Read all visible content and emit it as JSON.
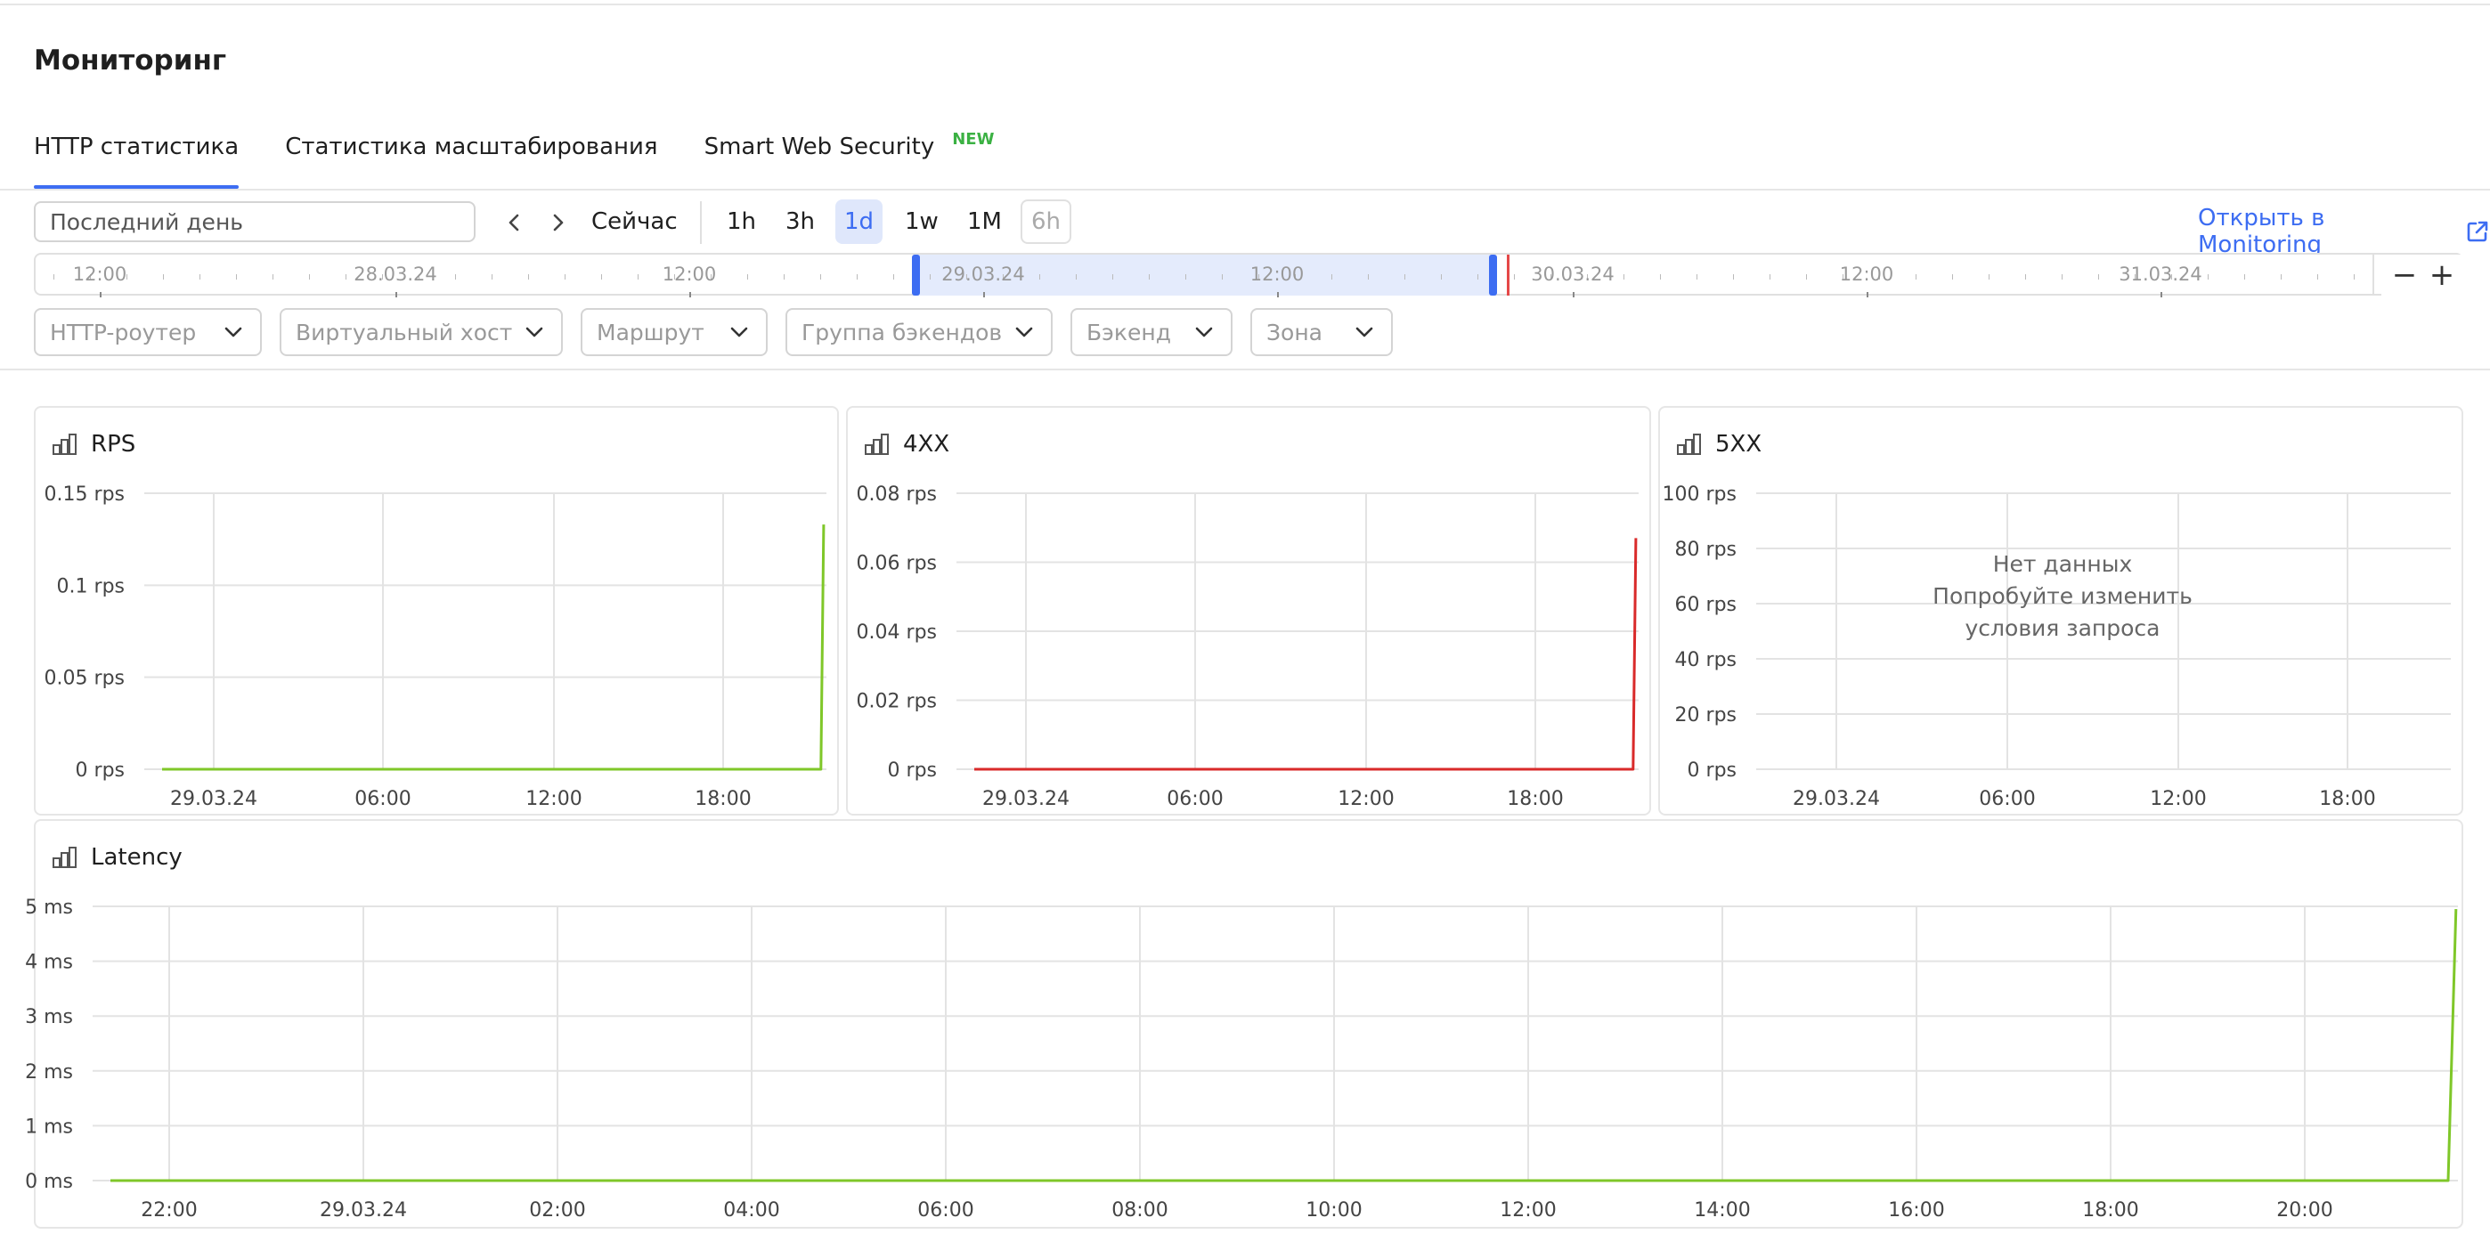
{
  "page": {
    "title": "Мониторинг"
  },
  "tabs": [
    {
      "label": "HTTP статистика",
      "active": true
    },
    {
      "label": "Статистика масштабирования",
      "active": false
    },
    {
      "label": "Smart Web Security",
      "badge": "NEW",
      "active": false
    }
  ],
  "toolbar": {
    "range_value": "Последний день",
    "now_label": "Сейчас",
    "quick_ranges": [
      "1h",
      "3h",
      "1d",
      "1w",
      "1M",
      "6h"
    ],
    "active_range": "1d",
    "disabled_range": "6h",
    "open_monitoring_label": "Открыть в Monitoring",
    "accent_color": "#3d6df2"
  },
  "timeline": {
    "labels": [
      "12:00",
      "28.03.24",
      "12:00",
      "29.03.24",
      "12:00",
      "30.03.24",
      "12:00",
      "31.03.24"
    ],
    "zoom_out": "−",
    "zoom_in": "+"
  },
  "filters": [
    "HTTP-роутер",
    "Виртуальный хост",
    "Маршрут",
    "Группа бэкендов",
    "Бэкенд",
    "Зона"
  ],
  "charts": {
    "rps": {
      "title": "RPS",
      "color": "#7fc729",
      "chart_data": {
        "type": "line",
        "title": "RPS",
        "y_ticks": [
          "0.15 rps",
          "0.1 rps",
          "0.05 rps",
          "0 rps"
        ],
        "x_ticks": [
          "29.03.24",
          "06:00",
          "12:00",
          "18:00"
        ],
        "ylim": [
          0,
          0.15
        ],
        "xlim": [
          -2.6,
          21.4
        ],
        "x": [
          -2.6,
          21.2,
          21.3
        ],
        "values": [
          0,
          0,
          0.133
        ]
      }
    },
    "4xx": {
      "title": "4XX",
      "color": "#d92a2a",
      "chart_data": {
        "type": "line",
        "title": "4XX",
        "y_ticks": [
          "0.08 rps",
          "0.06 rps",
          "0.04 rps",
          "0.02 rps",
          "0 rps"
        ],
        "x_ticks": [
          "29.03.24",
          "06:00",
          "12:00",
          "18:00"
        ],
        "ylim": [
          0,
          0.08
        ],
        "xlim": [
          -2.6,
          21.4
        ],
        "x": [
          -2.6,
          21.2,
          21.3
        ],
        "values": [
          0,
          0,
          0.067
        ]
      }
    },
    "5xx": {
      "title": "5XX",
      "no_data_title": "Нет данных",
      "no_data_hint": "Попробуйте изменить условия запроса",
      "chart_data": {
        "type": "line",
        "title": "5XX",
        "y_ticks": [
          "100 rps",
          "80 rps",
          "60 rps",
          "40 rps",
          "20 rps",
          "0 rps"
        ],
        "x_ticks": [
          "29.03.24",
          "06:00",
          "12:00",
          "18:00"
        ],
        "ylim": [
          0,
          100
        ],
        "x": [],
        "values": []
      }
    },
    "latency": {
      "title": "Latency",
      "color": "#7fc729",
      "chart_data": {
        "type": "line",
        "title": "Latency",
        "y_ticks": [
          "5 ms",
          "4 ms",
          "3 ms",
          "2 ms",
          "1 ms",
          "0 ms"
        ],
        "x_ticks": [
          "22:00",
          "29.03.24",
          "02:00",
          "04:00",
          "06:00",
          "08:00",
          "10:00",
          "12:00",
          "14:00",
          "16:00",
          "18:00",
          "20:00"
        ],
        "ylim": [
          0,
          5
        ],
        "xlim": [
          -2.55,
          21.4
        ],
        "x": [
          -2.55,
          21.3,
          21.38
        ],
        "values": [
          0,
          0,
          4.95
        ]
      }
    }
  }
}
